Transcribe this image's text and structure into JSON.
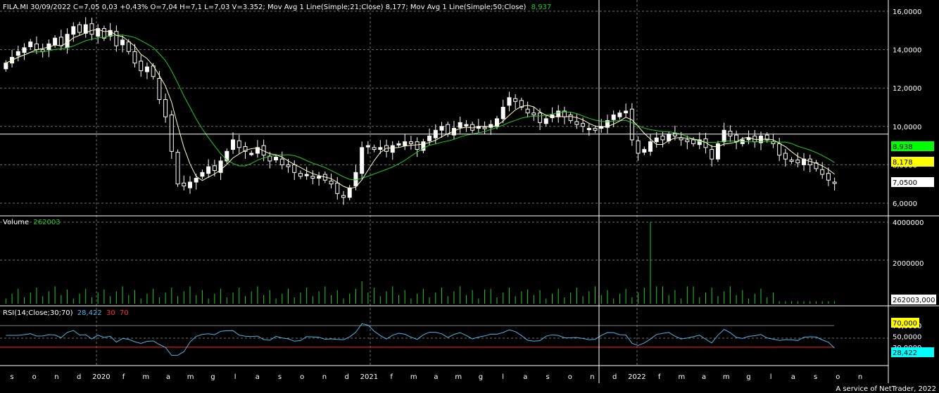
{
  "header": {
    "text": "FILA.MI 30/09/2022 C=7,05 0,03 +0,43% O=7,04 H=7,1 L=7,03 V=3.352; Mov Avg 1 Line(Simple;21;Close) 8,177; Mov Avg 1 Line(Simple;50;Close)",
    "ma50_value": "8,937"
  },
  "volume_panel": {
    "label": "Volume",
    "value": "262003"
  },
  "rsi_panel": {
    "label": "RSI(14;Close;30;70)",
    "value": "28,422",
    "lower": "30",
    "upper": "70"
  },
  "price_axis": [
    "16,0000",
    "14,0000",
    "12,0000",
    "10,0000",
    "8,0000",
    "6,0000"
  ],
  "volume_axis": [
    "4000000",
    "2000000"
  ],
  "rsi_axis": [
    "70,0000",
    "50,0000",
    "30,0000"
  ],
  "badges": {
    "ma50": "8,938",
    "ma21": "8,178",
    "close": "7,0500",
    "volume": "262003,000",
    "rsi70": "70,000",
    "rsi": "28,422"
  },
  "time_axis": [
    "s",
    "o",
    "n",
    "d",
    "2020",
    "f",
    "m",
    "a",
    "m",
    "g",
    "l",
    "a",
    "s",
    "o",
    "n",
    "d",
    "2021",
    "f",
    "m",
    "a",
    "m",
    "g",
    "l",
    "a",
    "s",
    "o",
    "n",
    "d",
    "2022",
    "f",
    "m",
    "a",
    "m",
    "g",
    "l",
    "a",
    "s",
    "o",
    "n"
  ],
  "footer": "A service of NetTrader, 2022",
  "colors": {
    "background": "#000000",
    "ma21": "#ffffc0",
    "ma50": "#22cc22",
    "volume": "#22cc22",
    "rsi": "#4fb3e8",
    "rsi_limit_low": "#ff2020",
    "rsi_limit_high": "#808080",
    "badge_ma50": "#00ff00",
    "badge_ma21": "#ffff00",
    "badge_rsi": "#00ffff"
  },
  "chart_data": {
    "type": "candlestick",
    "ylim": [
      5.7,
      16.6
    ],
    "crosshair_price": 9.6,
    "weekly_close_approx": [
      13.3,
      13.6,
      13.9,
      14.1,
      14.4,
      14.0,
      13.9,
      14.3,
      14.6,
      14.2,
      14.8,
      15.2,
      14.9,
      15.3,
      14.8,
      15.1,
      14.6,
      15.0,
      14.2,
      14.5,
      13.9,
      13.3,
      12.9,
      13.1,
      12.6,
      11.4,
      10.5,
      8.7,
      7.0,
      6.9,
      7.1,
      7.3,
      7.6,
      7.9,
      7.7,
      8.2,
      8.7,
      9.3,
      8.9,
      8.7,
      8.6,
      8.9,
      8.5,
      8.2,
      8.4,
      8.0,
      7.9,
      7.6,
      7.4,
      7.5,
      7.3,
      7.4,
      7.2,
      7.0,
      6.5,
      6.3,
      6.8,
      7.6,
      8.9,
      9.0,
      8.8,
      8.9,
      8.7,
      9.0,
      9.1,
      9.2,
      9.1,
      8.8,
      9.2,
      9.5,
      9.8,
      10.0,
      9.6,
      9.9,
      10.2,
      10.1,
      9.8,
      10.0,
      9.9,
      10.1,
      10.4,
      11.0,
      11.5,
      11.3,
      11.0,
      10.7,
      10.6,
      10.2,
      10.4,
      10.6,
      10.8,
      10.5,
      10.3,
      10.1,
      10.0,
      9.9,
      9.8,
      10.0,
      10.3,
      10.6,
      10.7,
      10.8,
      9.3,
      8.6,
      8.8,
      9.2,
      9.4,
      9.3,
      9.6,
      9.5,
      9.3,
      9.2,
      9.1,
      9.3,
      8.9,
      8.3,
      9.1,
      9.8,
      9.5,
      9.2,
      9.3,
      9.4,
      9.2,
      9.5,
      9.3,
      9.1,
      8.5,
      8.3,
      8.2,
      8.1,
      8.3,
      8.0,
      7.8,
      7.5,
      7.2,
      7.05
    ],
    "ma21_value": 8.177,
    "ma50_value": 8.937,
    "volume_peak": 4000000,
    "volume_last": 262003,
    "rsi_last": 28.422,
    "rsi_levels": [
      30,
      70
    ]
  }
}
